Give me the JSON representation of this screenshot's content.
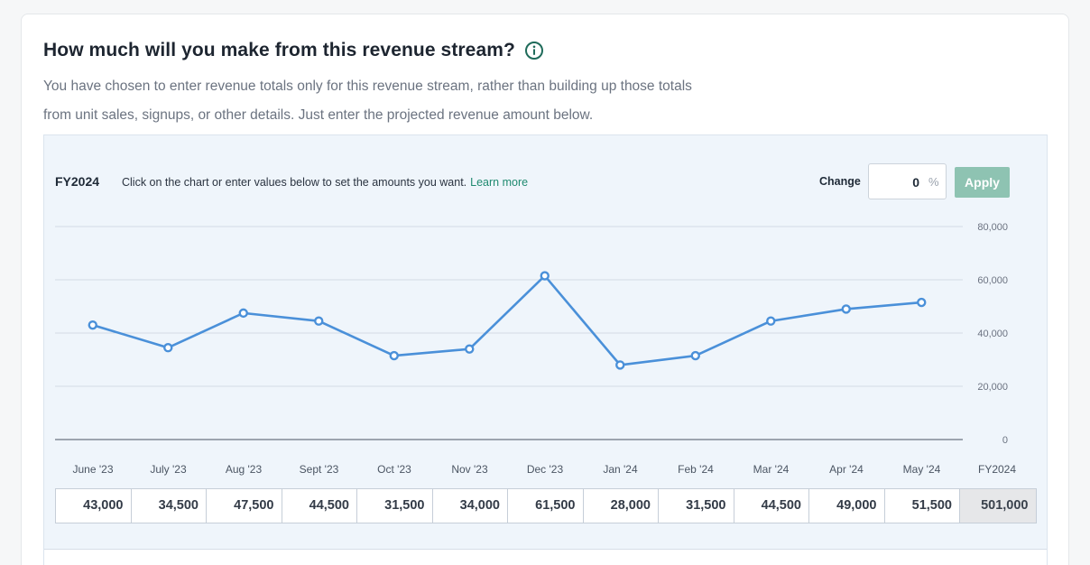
{
  "header": {
    "title": "How much will you make from this revenue stream?",
    "description_line1": "You have chosen to enter revenue totals only for this revenue stream, rather than building up those totals",
    "description_line2": "from unit sales, signups, or other details. Just enter the projected revenue amount below."
  },
  "panel": {
    "fiscal_year": "FY2024",
    "instructions": "Click on the chart or enter values below to set the amounts you want.",
    "learn_more": "Learn more",
    "change_label": "Change",
    "change_value": "0",
    "change_unit": "%",
    "apply_label": "Apply"
  },
  "colors": {
    "accent_line": "#4a90d9",
    "apply_button": "#8ec3b2",
    "link": "#1f8a70",
    "info_icon": "#1f6b5a"
  },
  "chart_data": {
    "type": "line",
    "categories": [
      "June '23",
      "July '23",
      "Aug '23",
      "Sept '23",
      "Oct '23",
      "Nov '23",
      "Dec '23",
      "Jan '24",
      "Feb '24",
      "Mar '24",
      "Apr '24",
      "May '24"
    ],
    "values": [
      43000,
      34500,
      47500,
      44500,
      31500,
      34000,
      61500,
      28000,
      31500,
      44500,
      49000,
      51500
    ],
    "ylim": [
      0,
      80000
    ],
    "yticks": [
      0,
      20000,
      40000,
      60000,
      80000
    ],
    "ytick_labels": [
      "0",
      "20,000",
      "40,000",
      "60,000",
      "80,000"
    ],
    "grid": true,
    "total_label": "FY2024"
  },
  "table": {
    "values": [
      "43,000",
      "34,500",
      "47,500",
      "44,500",
      "31,500",
      "34,000",
      "61,500",
      "28,000",
      "31,500",
      "44,500",
      "49,000",
      "51,500"
    ],
    "total": "501,000"
  }
}
